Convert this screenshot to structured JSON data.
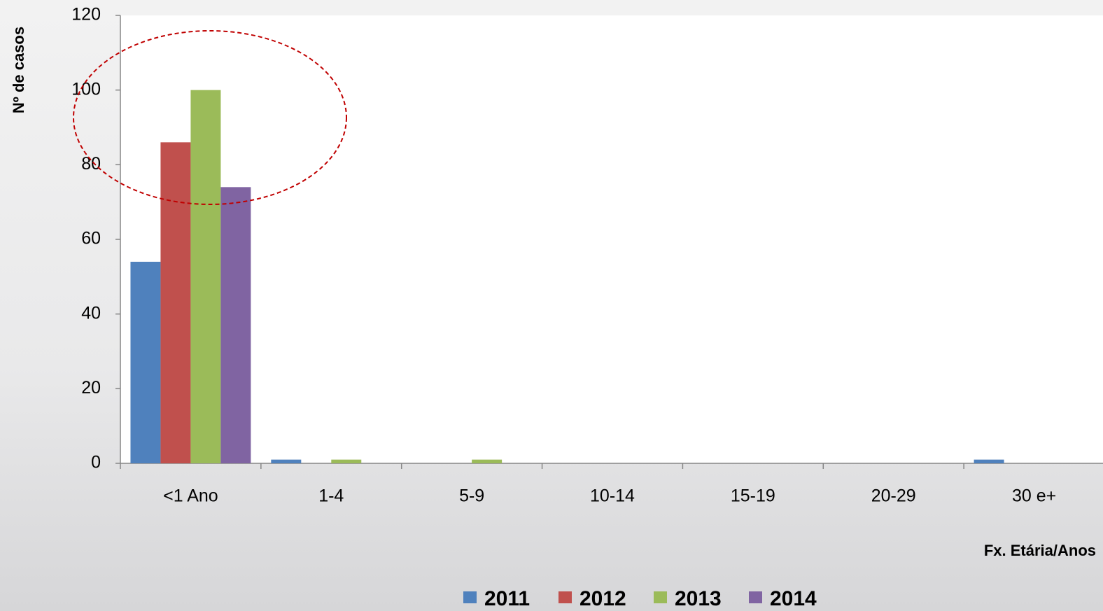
{
  "chart_data": {
    "type": "bar",
    "y_label": "Nº de casos",
    "x_label": "Fx. Etária/Anos",
    "categories": [
      "<1 Ano",
      "1-4",
      "5-9",
      "10-14",
      "15-19",
      "20-29",
      "30 e+"
    ],
    "series": [
      {
        "name": "2011",
        "color": "#4f81bd",
        "values": [
          54,
          1,
          0,
          0,
          0,
          0,
          1
        ]
      },
      {
        "name": "2012",
        "color": "#c0504d",
        "values": [
          86,
          0,
          0,
          0,
          0,
          0,
          0
        ]
      },
      {
        "name": "2013",
        "color": "#9bbb59",
        "values": [
          100,
          1,
          1,
          0,
          0,
          0,
          0
        ]
      },
      {
        "name": "2014",
        "color": "#8064a2",
        "values": [
          74,
          0,
          0,
          0,
          0,
          0,
          0
        ]
      }
    ],
    "ylim": [
      0,
      120
    ],
    "yticks": [
      0,
      20,
      40,
      60,
      80,
      100,
      120
    ],
    "legend": "bottom"
  }
}
